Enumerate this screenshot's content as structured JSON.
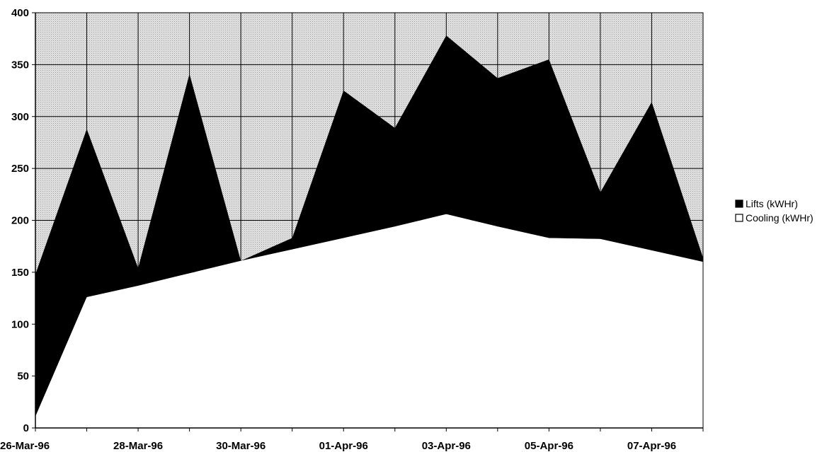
{
  "chart_data": {
    "type": "area",
    "stacked": true,
    "title": "",
    "xlabel": "",
    "ylabel": "",
    "x": [
      "26-Mar-96",
      "27-Mar-96",
      "28-Mar-96",
      "29-Mar-96",
      "30-Mar-96",
      "31-Mar-96",
      "01-Apr-96",
      "02-Apr-96",
      "03-Apr-96",
      "04-Apr-96",
      "05-Apr-96",
      "06-Apr-96",
      "07-Apr-96",
      "08-Apr-96"
    ],
    "x_tick_labels": [
      "26-Mar-96",
      "28-Mar-96",
      "30-Mar-96",
      "01-Apr-96",
      "03-Apr-96",
      "05-Apr-96",
      "07-Apr-96"
    ],
    "ylim": [
      0,
      400
    ],
    "y_ticks": [
      0,
      50,
      100,
      150,
      200,
      250,
      300,
      350,
      400
    ],
    "grid": true,
    "plot_background": "#d9d9d9",
    "legend_position": "right",
    "series": [
      {
        "name": "Lifts (kWHr)",
        "color": "#000000",
        "values": [
          137,
          162,
          17,
          192,
          0,
          11,
          142,
          95,
          172,
          143,
          172,
          45,
          143,
          4
        ]
      },
      {
        "name": "Cooling (kWHr)",
        "color": "#ffffff",
        "values": [
          11,
          126,
          137,
          149,
          161,
          172,
          183,
          194,
          206,
          194,
          183,
          182,
          171,
          160
        ]
      }
    ]
  }
}
